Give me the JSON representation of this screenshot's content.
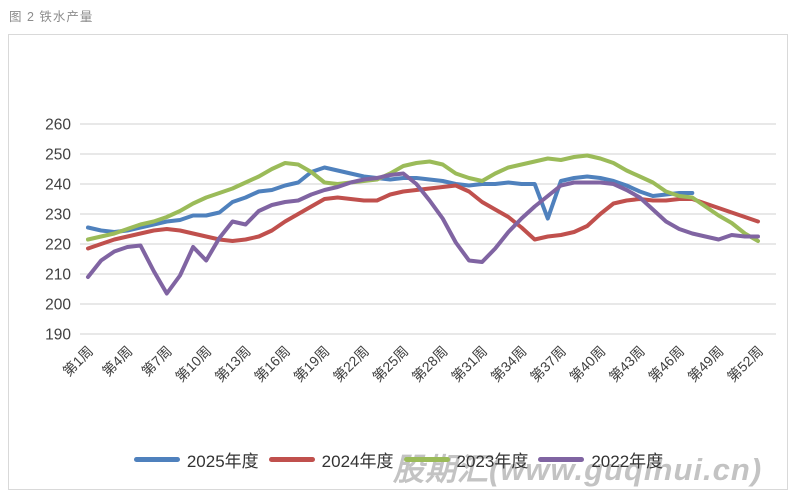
{
  "page": {
    "heading": "图 2 铁水产量",
    "watermark": "股期汇(www.guqihui.cn)"
  },
  "chart_data": {
    "type": "line",
    "title": "铁水产量",
    "xlabel": "",
    "ylabel": "",
    "ylim": [
      190,
      260
    ],
    "y_ticks": [
      190,
      200,
      210,
      220,
      230,
      240,
      250,
      260
    ],
    "x_total_weeks": 52,
    "x_tick_weeks": [
      1,
      4,
      7,
      10,
      13,
      16,
      19,
      22,
      25,
      28,
      31,
      34,
      37,
      40,
      43,
      46,
      49,
      52
    ],
    "x_tick_labels": [
      "第1周",
      "第4周",
      "第7周",
      "第10周",
      "第13周",
      "第16周",
      "第19周",
      "第22周",
      "第25周",
      "第28周",
      "第31周",
      "第34周",
      "第37周",
      "第40周",
      "第43周",
      "第46周",
      "第49周",
      "第52周"
    ],
    "grid": "horizontal",
    "legend_position": "bottom",
    "axis_text_color": "#404040",
    "grid_color": "#d9d9d9",
    "series": [
      {
        "name": "2025年度",
        "color": "#4F81BD",
        "start_week": 1,
        "values": [
          225.5,
          224.5,
          224,
          224.5,
          225.5,
          226.5,
          227.5,
          228,
          229.5,
          229.5,
          230.5,
          234,
          235.5,
          237.5,
          238,
          239.5,
          240.5,
          244,
          245.5,
          244.5,
          243.5,
          242.5,
          242,
          241.5,
          242,
          242,
          241.5,
          241,
          240,
          239.5,
          240,
          240,
          240.5,
          240,
          240,
          228.5,
          241,
          242,
          242.5,
          242,
          241,
          239.5,
          237.5,
          236,
          236.5,
          237,
          237
        ]
      },
      {
        "name": "2024年度",
        "color": "#C0504D",
        "start_week": 1,
        "values": [
          218.5,
          220,
          221.5,
          222.5,
          223.5,
          224.5,
          225,
          224.5,
          223.5,
          222.5,
          221.5,
          221,
          221.5,
          222.5,
          224.5,
          227.5,
          230,
          232.5,
          235,
          235.5,
          235,
          234.5,
          234.5,
          236.5,
          237.5,
          238,
          238.5,
          239,
          239.5,
          237.5,
          234,
          231.5,
          229,
          225.5,
          221.5,
          222.5,
          223,
          224,
          226,
          230,
          233.5,
          234.5,
          235,
          234.5,
          234.5,
          235,
          235,
          233.5,
          232,
          230.5,
          229,
          227.5
        ]
      },
      {
        "name": "2023年度",
        "color": "#9BBB59",
        "start_week": 1,
        "values": [
          221.5,
          222.5,
          223.5,
          225,
          226.5,
          227.5,
          229,
          231,
          233.5,
          235.5,
          237,
          238.5,
          240.5,
          242.5,
          245,
          247,
          246.5,
          244,
          240.5,
          240,
          240.5,
          241,
          241.5,
          243.5,
          246,
          247,
          247.5,
          246.5,
          243.5,
          242,
          241,
          243.5,
          245.5,
          246.5,
          247.5,
          248.5,
          248,
          249,
          249.5,
          248.5,
          247,
          244.5,
          242.5,
          240.5,
          237.5,
          236,
          235.5,
          232.5,
          229.5,
          227,
          223.5,
          221
        ]
      },
      {
        "name": "2022年度",
        "color": "#8064A2",
        "start_week": 1,
        "values": [
          209,
          214.5,
          217.5,
          219,
          219.5,
          211,
          203.5,
          209.5,
          219,
          214.5,
          222,
          227.5,
          226.5,
          231,
          233,
          234,
          234.5,
          236.5,
          238,
          239,
          240.5,
          241.5,
          242,
          243,
          243.5,
          240,
          234.5,
          228.5,
          220.5,
          214.5,
          214,
          218.5,
          224,
          228.5,
          232.5,
          236,
          239.5,
          240.5,
          240.5,
          240.5,
          240,
          238,
          235.5,
          231.5,
          227.5,
          225,
          223.5,
          222.5,
          221.5,
          223,
          222.5,
          222.5
        ]
      }
    ]
  }
}
